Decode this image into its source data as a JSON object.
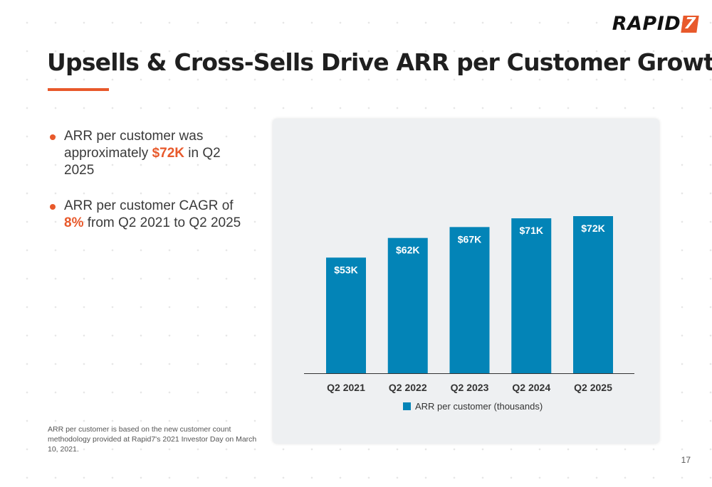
{
  "brand": {
    "logo_text": "RAPID",
    "logo_mark": "7",
    "accent_color": "#e8592b",
    "bar_color": "#0384b7"
  },
  "title": "Upsells & Cross-Sells Drive ARR per Customer Growth",
  "bullets": [
    {
      "pre": "ARR per customer was approximately ",
      "highlight": "$72K",
      "post": " in Q2 2025"
    },
    {
      "pre": "ARR per customer CAGR of ",
      "highlight": "8%",
      "post": " from Q2 2021 to Q2 2025"
    }
  ],
  "footnote": "ARR per customer is based on the new customer count methodology provided at Rapid7's 2021 Investor Day on March 10, 2021.",
  "page_number": "17",
  "chart_data": {
    "type": "bar",
    "categories": [
      "Q2 2021",
      "Q2 2022",
      "Q2 2023",
      "Q2 2024",
      "Q2 2025"
    ],
    "series": [
      {
        "name": "ARR per customer (thousands)",
        "values": [
          53,
          62,
          67,
          71,
          72
        ]
      }
    ],
    "data_labels": [
      "$53K",
      "$62K",
      "$67K",
      "$71K",
      "$72K"
    ],
    "title": "",
    "xlabel": "",
    "ylabel": "",
    "ylim": [
      0,
      72
    ],
    "grid": false,
    "legend": "bottom"
  }
}
